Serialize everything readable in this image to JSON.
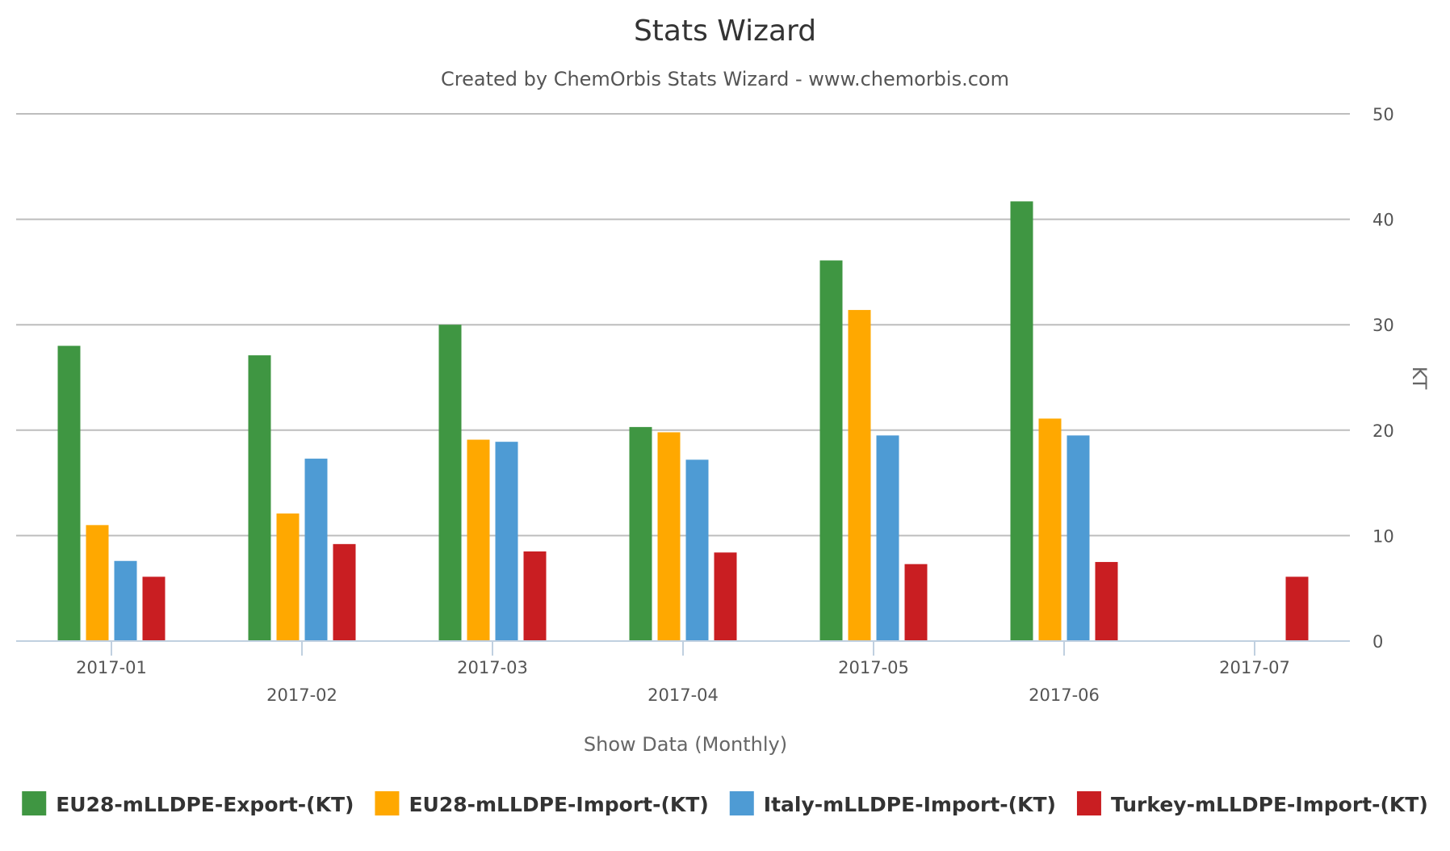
{
  "chart_data": {
    "type": "bar",
    "title": "Stats Wizard",
    "subtitle": "Created by ChemOrbis Stats Wizard - www.chemorbis.com",
    "xlabel": "Show Data (Monthly)",
    "ylabel": "KT",
    "ylim": [
      0,
      50
    ],
    "yticks": [
      0,
      10,
      20,
      30,
      40,
      50
    ],
    "grid": true,
    "legend_position": "bottom",
    "categories": [
      "2017-01",
      "2017-02",
      "2017-03",
      "2017-04",
      "2017-05",
      "2017-06",
      "2017-07"
    ],
    "series": [
      {
        "name": "EU28-mLLDPE-Export-(KT)",
        "color": "#3f9642",
        "values": [
          28,
          27.1,
          30,
          20.3,
          36.1,
          41.7,
          null
        ]
      },
      {
        "name": "EU28-mLLDPE-Import-(KT)",
        "color": "#ffa800",
        "values": [
          11,
          12.1,
          19.1,
          19.8,
          31.4,
          21.1,
          null
        ]
      },
      {
        "name": "Italy-mLLDPE-Import-(KT)",
        "color": "#4e9bd4",
        "values": [
          7.6,
          17.3,
          18.9,
          17.2,
          19.5,
          19.5,
          null
        ]
      },
      {
        "name": "Turkey-mLLDPE-Import-(KT)",
        "color": "#c91e22",
        "values": [
          6.1,
          9.2,
          8.5,
          8.4,
          7.3,
          7.5,
          6.1
        ]
      }
    ]
  }
}
